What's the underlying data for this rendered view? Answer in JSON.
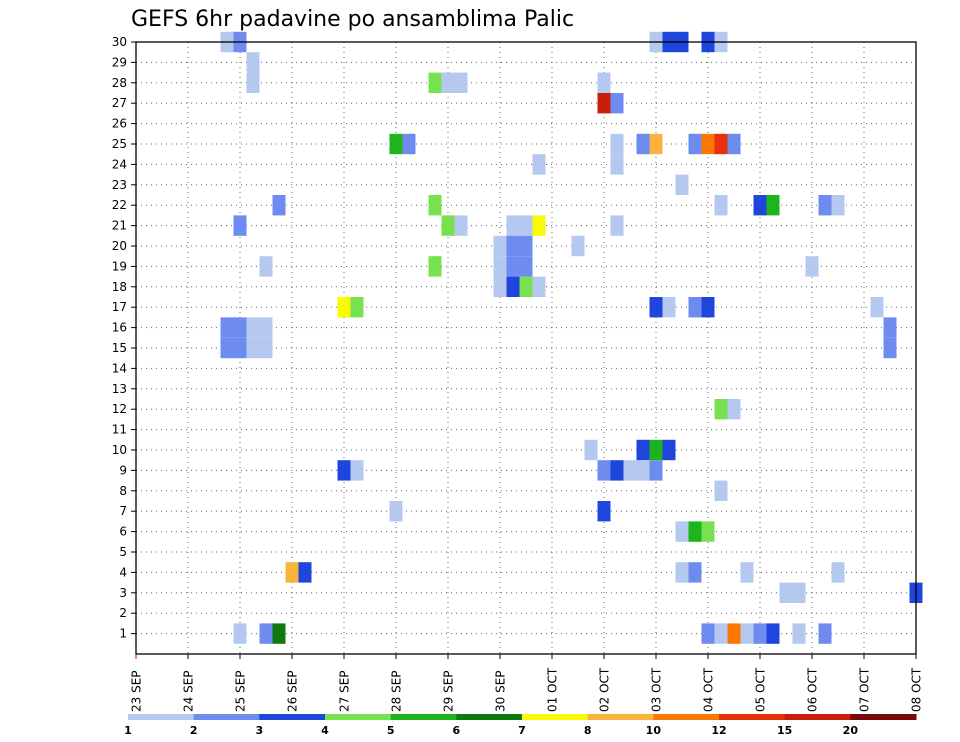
{
  "chart_data": {
    "type": "heatmap",
    "title": "GEFS 6hr padavine po ansamblima Palic",
    "xlabel": "",
    "ylabel": "",
    "x_tick_labels": [
      "23 SEP",
      "24 SEP",
      "25 SEP",
      "26 SEP",
      "27 SEP",
      "28 SEP",
      "29 SEP",
      "30 SEP",
      "01 OCT",
      "02 OCT",
      "03 OCT",
      "04 OCT",
      "05 OCT",
      "06 OCT",
      "07 OCT",
      "08 OCT"
    ],
    "x_range_days": [
      0,
      15
    ],
    "y_range": [
      0,
      30
    ],
    "y_tick_labels": [
      1,
      2,
      3,
      4,
      5,
      6,
      7,
      8,
      9,
      10,
      11,
      12,
      13,
      14,
      15,
      16,
      17,
      18,
      19,
      20,
      21,
      22,
      23,
      24,
      25,
      26,
      27,
      28,
      29,
      30
    ],
    "grid": "dotted",
    "levels": [
      {
        "label": "1",
        "color": "#b4c8f0"
      },
      {
        "label": "2",
        "color": "#6e8cf0"
      },
      {
        "label": "3",
        "color": "#1e46dc"
      },
      {
        "label": "4",
        "color": "#78e150"
      },
      {
        "label": "5",
        "color": "#1eb41e"
      },
      {
        "label": "6",
        "color": "#0f780f"
      },
      {
        "label": "7",
        "color": "#fafa00"
      },
      {
        "label": "8",
        "color": "#fab43c"
      },
      {
        "label": "10",
        "color": "#fa7800"
      },
      {
        "label": "12",
        "color": "#e6320a"
      },
      {
        "label": "15",
        "color": "#c81e0a"
      },
      {
        "label": "20",
        "color": "#780a0a"
      }
    ],
    "legend_labels": [
      "1",
      "2",
      "3",
      "4",
      "5",
      "6",
      "7",
      "8",
      "10",
      "12",
      "15",
      "20",
      ""
    ],
    "cells": [
      [
        30,
        1.75,
        0
      ],
      [
        30,
        2.0,
        1
      ],
      [
        30,
        10.0,
        0
      ],
      [
        30,
        10.25,
        2
      ],
      [
        30,
        10.5,
        2
      ],
      [
        30,
        11.0,
        2
      ],
      [
        30,
        11.25,
        0
      ],
      [
        29,
        2.25,
        0
      ],
      [
        28,
        2.25,
        0
      ],
      [
        28,
        5.75,
        3
      ],
      [
        28,
        6.0,
        0
      ],
      [
        28,
        6.25,
        0
      ],
      [
        28,
        9.0,
        0
      ],
      [
        27,
        9.0,
        10
      ],
      [
        27,
        9.25,
        1
      ],
      [
        25,
        5.0,
        4
      ],
      [
        25,
        5.25,
        1
      ],
      [
        25,
        9.25,
        0
      ],
      [
        25,
        9.75,
        1
      ],
      [
        25,
        10.0,
        7
      ],
      [
        25,
        10.75,
        1
      ],
      [
        25,
        11.0,
        8
      ],
      [
        25,
        11.25,
        9
      ],
      [
        25,
        11.5,
        1
      ],
      [
        24,
        7.75,
        0
      ],
      [
        24,
        9.25,
        0
      ],
      [
        23,
        10.5,
        0
      ],
      [
        22,
        2.75,
        1
      ],
      [
        22,
        5.75,
        3
      ],
      [
        22,
        11.25,
        0
      ],
      [
        22,
        12.0,
        2
      ],
      [
        22,
        12.25,
        4
      ],
      [
        22,
        13.25,
        1
      ],
      [
        22,
        13.5,
        0
      ],
      [
        21,
        2.0,
        1
      ],
      [
        21,
        6.0,
        3
      ],
      [
        21,
        6.25,
        0
      ],
      [
        21,
        7.25,
        0
      ],
      [
        21,
        7.5,
        0
      ],
      [
        21,
        7.75,
        6
      ],
      [
        21,
        9.25,
        0
      ],
      [
        20,
        7.0,
        0
      ],
      [
        20,
        7.25,
        1
      ],
      [
        20,
        7.5,
        1
      ],
      [
        20,
        8.5,
        0
      ],
      [
        19,
        2.5,
        0
      ],
      [
        19,
        5.75,
        3
      ],
      [
        19,
        7.0,
        0
      ],
      [
        19,
        7.25,
        1
      ],
      [
        19,
        7.5,
        1
      ],
      [
        19,
        13.0,
        0
      ],
      [
        18,
        7.0,
        0
      ],
      [
        18,
        7.25,
        2
      ],
      [
        18,
        7.5,
        3
      ],
      [
        18,
        7.75,
        0
      ],
      [
        17,
        4.0,
        6
      ],
      [
        17,
        4.25,
        3
      ],
      [
        17,
        10.0,
        2
      ],
      [
        17,
        10.25,
        0
      ],
      [
        17,
        10.75,
        1
      ],
      [
        17,
        11.0,
        2
      ],
      [
        17,
        14.25,
        0
      ],
      [
        16,
        1.75,
        1
      ],
      [
        16,
        2.0,
        1
      ],
      [
        16,
        2.25,
        0
      ],
      [
        16,
        2.5,
        0
      ],
      [
        16,
        14.5,
        1
      ],
      [
        15,
        1.75,
        1
      ],
      [
        15,
        2.0,
        1
      ],
      [
        15,
        2.25,
        0
      ],
      [
        15,
        2.5,
        0
      ],
      [
        15,
        14.5,
        1
      ],
      [
        12,
        11.25,
        3
      ],
      [
        12,
        11.5,
        0
      ],
      [
        10,
        8.75,
        0
      ],
      [
        10,
        9.75,
        2
      ],
      [
        10,
        10.0,
        4
      ],
      [
        10,
        10.25,
        2
      ],
      [
        9,
        4.0,
        2
      ],
      [
        9,
        4.25,
        0
      ],
      [
        9,
        9.0,
        1
      ],
      [
        9,
        9.25,
        2
      ],
      [
        9,
        9.5,
        0
      ],
      [
        9,
        9.75,
        0
      ],
      [
        9,
        10.0,
        1
      ],
      [
        8,
        11.25,
        0
      ],
      [
        7,
        5.0,
        0
      ],
      [
        7,
        9.0,
        2
      ],
      [
        6,
        10.5,
        0
      ],
      [
        6,
        10.75,
        4
      ],
      [
        6,
        11.0,
        3
      ],
      [
        4,
        3.0,
        7
      ],
      [
        4,
        3.25,
        2
      ],
      [
        4,
        10.5,
        0
      ],
      [
        4,
        10.75,
        1
      ],
      [
        4,
        11.75,
        0
      ],
      [
        4,
        13.5,
        0
      ],
      [
        3,
        12.5,
        0
      ],
      [
        3,
        12.75,
        0
      ],
      [
        3,
        15.0,
        2
      ],
      [
        1,
        2.0,
        0
      ],
      [
        1,
        2.5,
        1
      ],
      [
        1,
        2.75,
        5
      ],
      [
        1,
        11.0,
        1
      ],
      [
        1,
        11.25,
        0
      ],
      [
        1,
        11.5,
        8
      ],
      [
        1,
        11.75,
        0
      ],
      [
        1,
        12.0,
        1
      ],
      [
        1,
        12.25,
        2
      ],
      [
        1,
        12.75,
        0
      ],
      [
        1,
        13.25,
        1
      ]
    ]
  }
}
